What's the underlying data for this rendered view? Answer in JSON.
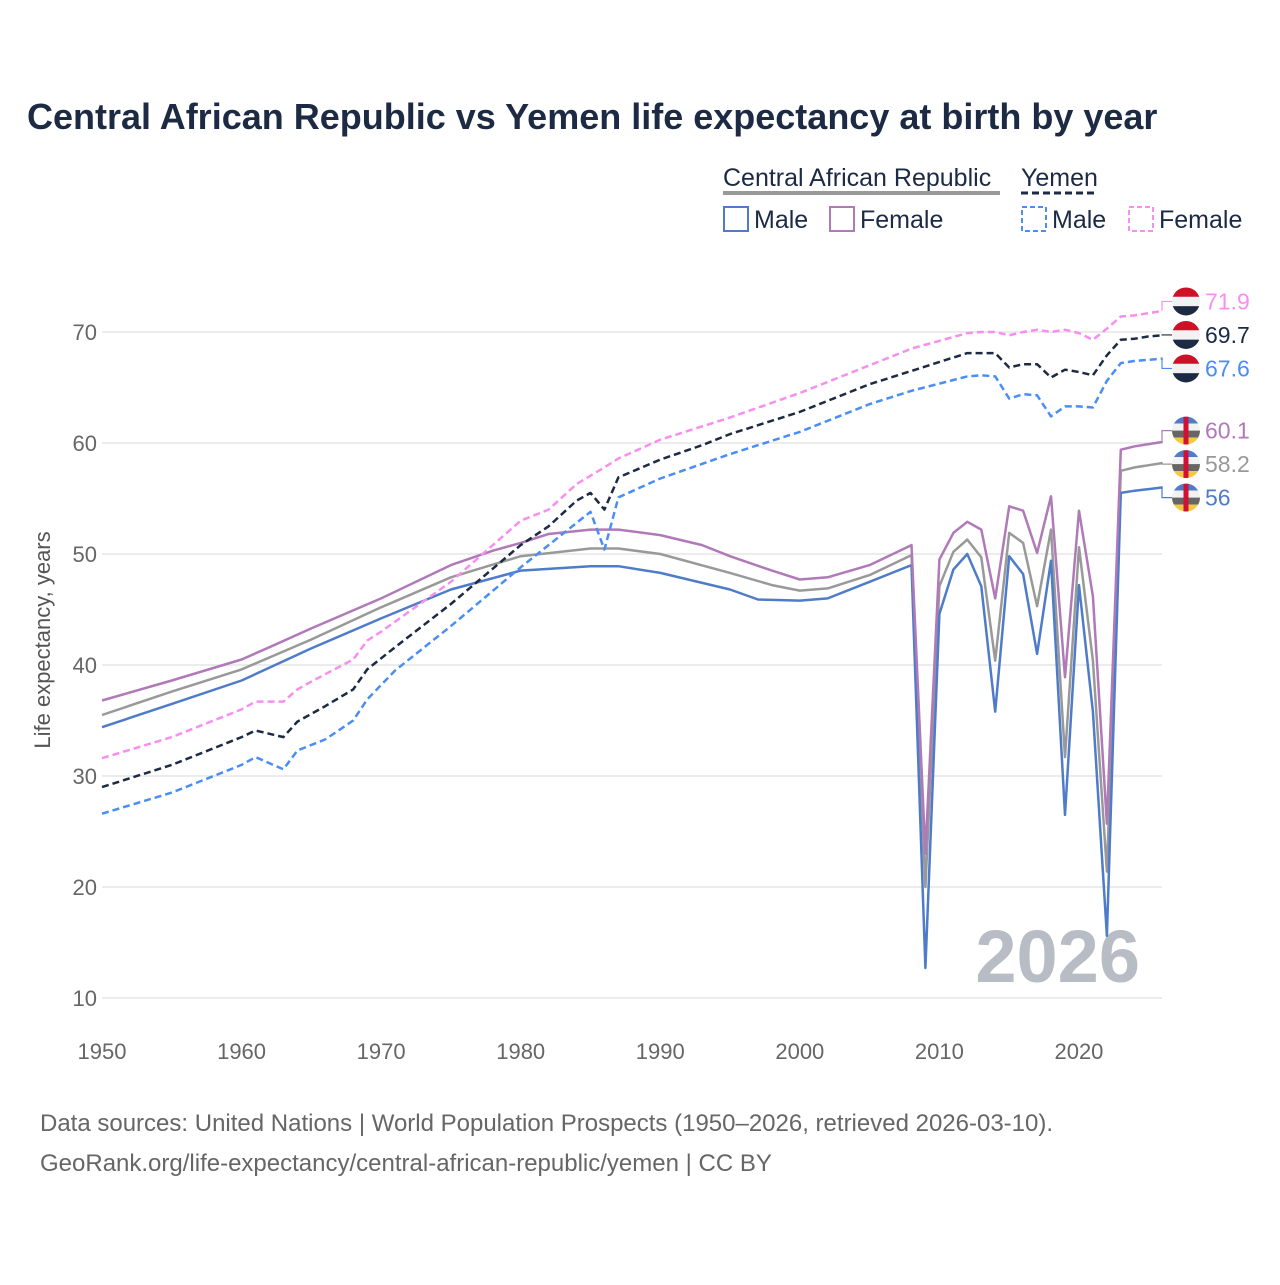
{
  "chart_data": {
    "type": "line",
    "title": "Central African Republic vs Yemen life expectancy at birth by year",
    "xlabel": "",
    "ylabel": "Life expectancy, years",
    "xlim": [
      1950,
      2026
    ],
    "ylim": [
      10,
      75
    ],
    "x_ticks": [
      "1950",
      "1960",
      "1970",
      "1980",
      "1990",
      "2000",
      "2010",
      "2020"
    ],
    "y_ticks": [
      "10",
      "20",
      "30",
      "40",
      "50",
      "60",
      "70"
    ],
    "grid": true,
    "current_year_label": "2026",
    "legend": {
      "placement": "top-right",
      "groups": [
        {
          "name": "Central African Republic",
          "items": [
            "Male",
            "Female"
          ]
        },
        {
          "name": "Yemen",
          "items": [
            "Male",
            "Female"
          ]
        }
      ]
    },
    "series": [
      {
        "country": "Central African Republic",
        "name": "Both",
        "color": "#999999",
        "dashed": false,
        "end_label": "58.2",
        "flag": "car",
        "points": [
          [
            1950,
            35.5
          ],
          [
            1955,
            37.6
          ],
          [
            1960,
            39.6
          ],
          [
            1965,
            42.3
          ],
          [
            1970,
            45.2
          ],
          [
            1975,
            47.9
          ],
          [
            1980,
            49.8
          ],
          [
            1985,
            50.5
          ],
          [
            1987,
            50.5
          ],
          [
            1990,
            50.0
          ],
          [
            1995,
            48.3
          ],
          [
            1998,
            47.2
          ],
          [
            2000,
            46.7
          ],
          [
            2002,
            46.9
          ],
          [
            2005,
            48.1
          ],
          [
            2008,
            49.9
          ],
          [
            2009,
            20.0
          ],
          [
            2010,
            47.1
          ],
          [
            2011,
            50.2
          ],
          [
            2012,
            51.3
          ],
          [
            2013,
            49.7
          ],
          [
            2014,
            40.4
          ],
          [
            2015,
            51.9
          ],
          [
            2016,
            51.0
          ],
          [
            2017,
            45.3
          ],
          [
            2018,
            52.2
          ],
          [
            2019,
            31.7
          ],
          [
            2020,
            50.6
          ],
          [
            2021,
            40.4
          ],
          [
            2022,
            21.4
          ],
          [
            2023,
            57.5
          ],
          [
            2024,
            57.8
          ],
          [
            2025,
            58.0
          ],
          [
            2026,
            58.2
          ]
        ]
      },
      {
        "country": "Central African Republic",
        "name": "Male",
        "color": "#4f7cc9",
        "dashed": false,
        "end_label": "56",
        "flag": "car",
        "points": [
          [
            1950,
            34.4
          ],
          [
            1955,
            36.5
          ],
          [
            1960,
            38.6
          ],
          [
            1965,
            41.5
          ],
          [
            1970,
            44.2
          ],
          [
            1975,
            46.8
          ],
          [
            1980,
            48.5
          ],
          [
            1985,
            48.9
          ],
          [
            1987,
            48.9
          ],
          [
            1990,
            48.3
          ],
          [
            1995,
            46.8
          ],
          [
            1997,
            45.9
          ],
          [
            2000,
            45.8
          ],
          [
            2002,
            46.0
          ],
          [
            2005,
            47.5
          ],
          [
            2008,
            49.0
          ],
          [
            2009,
            12.7
          ],
          [
            2010,
            44.6
          ],
          [
            2011,
            48.6
          ],
          [
            2012,
            50.0
          ],
          [
            2013,
            47.1
          ],
          [
            2014,
            35.8
          ],
          [
            2015,
            49.8
          ],
          [
            2016,
            48.2
          ],
          [
            2017,
            41.0
          ],
          [
            2018,
            49.4
          ],
          [
            2019,
            26.5
          ],
          [
            2020,
            47.2
          ],
          [
            2021,
            35.8
          ],
          [
            2022,
            15.6
          ],
          [
            2023,
            55.5
          ],
          [
            2024,
            55.7
          ],
          [
            2025,
            55.85
          ],
          [
            2026,
            56.0
          ]
        ]
      },
      {
        "country": "Central African Republic",
        "name": "Female",
        "color": "#b07ab8",
        "dashed": false,
        "end_label": "60.1",
        "flag": "car",
        "points": [
          [
            1950,
            36.8
          ],
          [
            1955,
            38.6
          ],
          [
            1960,
            40.5
          ],
          [
            1962,
            41.6
          ],
          [
            1965,
            43.3
          ],
          [
            1970,
            46.0
          ],
          [
            1975,
            49.0
          ],
          [
            1978,
            50.3
          ],
          [
            1980,
            51.0
          ],
          [
            1982,
            51.8
          ],
          [
            1985,
            52.2
          ],
          [
            1987,
            52.2
          ],
          [
            1990,
            51.7
          ],
          [
            1993,
            50.8
          ],
          [
            1995,
            49.8
          ],
          [
            1998,
            48.5
          ],
          [
            2000,
            47.7
          ],
          [
            2002,
            47.9
          ],
          [
            2005,
            49.0
          ],
          [
            2008,
            50.8
          ],
          [
            2009,
            23.0
          ],
          [
            2010,
            49.5
          ],
          [
            2011,
            51.9
          ],
          [
            2012,
            52.9
          ],
          [
            2013,
            52.2
          ],
          [
            2014,
            46.0
          ],
          [
            2015,
            54.3
          ],
          [
            2016,
            53.9
          ],
          [
            2017,
            50.1
          ],
          [
            2018,
            55.2
          ],
          [
            2019,
            38.9
          ],
          [
            2020,
            53.9
          ],
          [
            2021,
            46.2
          ],
          [
            2022,
            25.7
          ],
          [
            2023,
            59.4
          ],
          [
            2024,
            59.7
          ],
          [
            2025,
            59.9
          ],
          [
            2026,
            60.1
          ]
        ]
      },
      {
        "country": "Yemen",
        "name": "Both",
        "color": "#1c2a44",
        "dashed": true,
        "end_label": "69.7",
        "flag": "yemen",
        "points": [
          [
            1950,
            29.0
          ],
          [
            1955,
            31.0
          ],
          [
            1960,
            33.5
          ],
          [
            1961,
            34.1
          ],
          [
            1963,
            33.5
          ],
          [
            1964,
            34.9
          ],
          [
            1966,
            36.3
          ],
          [
            1968,
            37.8
          ],
          [
            1969,
            39.6
          ],
          [
            1971,
            41.6
          ],
          [
            1975,
            45.5
          ],
          [
            1980,
            50.8
          ],
          [
            1982,
            52.5
          ],
          [
            1984,
            54.8
          ],
          [
            1985,
            55.5
          ],
          [
            1986,
            54.0
          ],
          [
            1987,
            56.9
          ],
          [
            1990,
            58.5
          ],
          [
            1993,
            59.8
          ],
          [
            1995,
            60.8
          ],
          [
            2000,
            62.8
          ],
          [
            2005,
            65.3
          ],
          [
            2008,
            66.5
          ],
          [
            2012,
            68.1
          ],
          [
            2013,
            68.1
          ],
          [
            2014,
            68.1
          ],
          [
            2015,
            66.8
          ],
          [
            2016,
            67.1
          ],
          [
            2017,
            67.1
          ],
          [
            2018,
            65.9
          ],
          [
            2019,
            66.6
          ],
          [
            2020,
            66.4
          ],
          [
            2021,
            66.1
          ],
          [
            2022,
            67.9
          ],
          [
            2023,
            69.3
          ],
          [
            2024,
            69.4
          ],
          [
            2025,
            69.6
          ],
          [
            2026,
            69.7
          ]
        ]
      },
      {
        "country": "Yemen",
        "name": "Male",
        "color": "#4a8ef5",
        "dashed": true,
        "end_label": "67.6",
        "flag": "yemen",
        "points": [
          [
            1950,
            26.6
          ],
          [
            1955,
            28.5
          ],
          [
            1960,
            31.0
          ],
          [
            1961,
            31.7
          ],
          [
            1963,
            30.6
          ],
          [
            1964,
            32.3
          ],
          [
            1966,
            33.3
          ],
          [
            1968,
            35.0
          ],
          [
            1969,
            36.9
          ],
          [
            1971,
            39.5
          ],
          [
            1975,
            43.5
          ],
          [
            1980,
            48.8
          ],
          [
            1982,
            50.8
          ],
          [
            1985,
            53.8
          ],
          [
            1986,
            50.4
          ],
          [
            1987,
            55.1
          ],
          [
            1990,
            56.8
          ],
          [
            1995,
            59.0
          ],
          [
            2000,
            61.0
          ],
          [
            2005,
            63.5
          ],
          [
            2008,
            64.7
          ],
          [
            2012,
            66.0
          ],
          [
            2013,
            66.1
          ],
          [
            2014,
            66.0
          ],
          [
            2015,
            64.0
          ],
          [
            2016,
            64.4
          ],
          [
            2017,
            64.3
          ],
          [
            2018,
            62.4
          ],
          [
            2019,
            63.3
          ],
          [
            2020,
            63.3
          ],
          [
            2021,
            63.2
          ],
          [
            2022,
            65.6
          ],
          [
            2023,
            67.2
          ],
          [
            2024,
            67.4
          ],
          [
            2025,
            67.5
          ],
          [
            2026,
            67.6
          ]
        ]
      },
      {
        "country": "Yemen",
        "name": "Female",
        "color": "#f78ef0",
        "dashed": true,
        "end_label": "71.9",
        "flag": "yemen",
        "points": [
          [
            1950,
            31.6
          ],
          [
            1955,
            33.5
          ],
          [
            1960,
            36.0
          ],
          [
            1961,
            36.7
          ],
          [
            1963,
            36.7
          ],
          [
            1964,
            37.8
          ],
          [
            1965,
            38.5
          ],
          [
            1968,
            40.5
          ],
          [
            1969,
            42.2
          ],
          [
            1970,
            43.0
          ],
          [
            1975,
            47.5
          ],
          [
            1980,
            53.0
          ],
          [
            1982,
            54.0
          ],
          [
            1984,
            56.3
          ],
          [
            1986,
            57.8
          ],
          [
            1987,
            58.6
          ],
          [
            1990,
            60.3
          ],
          [
            1995,
            62.3
          ],
          [
            2000,
            64.5
          ],
          [
            2005,
            67.0
          ],
          [
            2008,
            68.5
          ],
          [
            2012,
            69.9
          ],
          [
            2013,
            70.0
          ],
          [
            2014,
            70.0
          ],
          [
            2015,
            69.7
          ],
          [
            2016,
            70.0
          ],
          [
            2017,
            70.2
          ],
          [
            2018,
            70.0
          ],
          [
            2019,
            70.2
          ],
          [
            2020,
            69.9
          ],
          [
            2021,
            69.3
          ],
          [
            2022,
            70.3
          ],
          [
            2023,
            71.4
          ],
          [
            2024,
            71.5
          ],
          [
            2025,
            71.7
          ],
          [
            2026,
            71.9
          ]
        ]
      }
    ]
  },
  "footer": {
    "line1": "Data sources: United Nations | World Population Prospects (1950–2026, retrieved 2026-03-10).",
    "line2": "GeoRank.org/life-expectancy/central-african-republic/yemen | CC BY"
  }
}
